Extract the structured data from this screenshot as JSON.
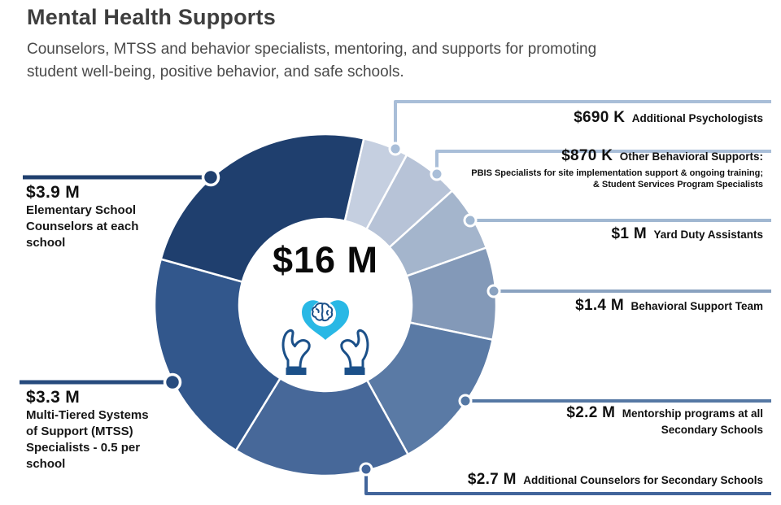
{
  "header": {
    "title": "Mental Health Supports",
    "subtitle": "Counselors, MTSS and behavior specialists, mentoring, and supports for promoting student well-being, positive behavior, and safe schools.",
    "subtitle_lines": [
      "Counselors, MTSS and behavior specialists, mentoring, and supports for promoting",
      "student well-being, positive behavior, and safe schools."
    ]
  },
  "chart_data": {
    "type": "pie",
    "variant": "donut",
    "title": "Mental Health Supports",
    "center_label": "$16 M",
    "total_label": "$16 M",
    "total_millions": 16.06,
    "start_angle_deg": 13,
    "direction": "clockwise",
    "legend_position": "callouts",
    "segments": [
      {
        "label": "Additional Psychologists",
        "value_label": "$690 K",
        "value_millions": 0.69,
        "color": "#c5cfe0",
        "line_color": "#a9bed8"
      },
      {
        "label": "Other Behavioral Supports: PBIS Specialists for site implementation support & ongoing training; & Student Services Program Specialists",
        "value_label": "$870 K",
        "value_millions": 0.87,
        "color": "#b7c3d7",
        "line_color": "#a9bed8"
      },
      {
        "label": "Yard Duty Assistants",
        "value_label": "$1 M",
        "value_millions": 1.0,
        "color": "#a4b5cc",
        "line_color": "#a0b7d1"
      },
      {
        "label": "Behavioral Support Team",
        "value_label": "$1.4 M",
        "value_millions": 1.4,
        "color": "#8399b8",
        "line_color": "#8aa2c0"
      },
      {
        "label": "Mentorship programs at all Secondary Schools",
        "value_label": "$2.2 M",
        "value_millions": 2.2,
        "color": "#5a7aa5",
        "line_color": "#5578a4"
      },
      {
        "label": "Additional Counselors for Secondary Schools",
        "value_label": "$2.7 M",
        "value_millions": 2.7,
        "color": "#476899",
        "line_color": "#42659b"
      },
      {
        "label": "Multi-Tiered Systems of Support (MTSS) Specialists - 0.5 per school",
        "value_label": "$3.3 M",
        "value_millions": 3.3,
        "color": "#32578c",
        "line_color": "#274b7e"
      },
      {
        "label": "Elementary School Counselors at each school",
        "value_label": "$3.9 M",
        "value_millions": 3.9,
        "color": "#1f3f6e",
        "line_color": "#1f3f6e"
      }
    ]
  },
  "callouts": {
    "right": [
      {
        "value": "$690 K",
        "lines": [
          "Additional Psychologists"
        ]
      },
      {
        "value": "$870 K",
        "lines": [
          "Other Behavioral Supports:"
        ],
        "sub": [
          "PBIS Specialists for site implementation support & ongoing training;",
          "& Student Services Program Specialists"
        ]
      },
      {
        "value": "$1 M",
        "lines": [
          "Yard Duty Assistants"
        ]
      },
      {
        "value": "$1.4 M",
        "lines": [
          "Behavioral Support Team"
        ]
      },
      {
        "value": "$2.2 M",
        "lines": [
          "Mentorship programs at all",
          "Secondary Schools"
        ]
      },
      {
        "value": "$2.7 M",
        "lines": [
          "Additional Counselors for Secondary Schools"
        ]
      }
    ],
    "left": [
      {
        "value": "$3.9 M",
        "lines": [
          "Elementary School",
          "Counselors at each",
          "school"
        ]
      },
      {
        "value": "$3.3 M",
        "lines": [
          "Multi-Tiered Systems",
          "of Support (MTSS)",
          "Specialists - 0.5 per",
          "school"
        ]
      }
    ]
  },
  "icon": {
    "name": "hands-holding-brain-heart",
    "heart_color": "#29b8e5",
    "outline_color": "#1b5089"
  }
}
